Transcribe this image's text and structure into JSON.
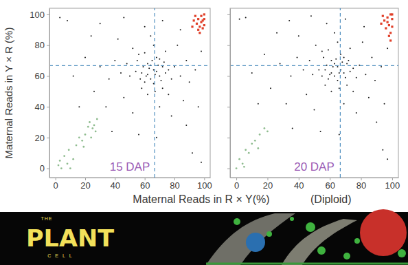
{
  "chart_data": [
    {
      "type": "scatter",
      "title": "15 DAP",
      "xlabel": "Maternal Reads in R × Y(%)",
      "ylabel": "Maternal Reads in Y × R (%)",
      "xlim": [
        -4,
        104
      ],
      "ylim": [
        -6,
        104
      ],
      "xticks": [
        0,
        20,
        40,
        60,
        80,
        100
      ],
      "yticks": [
        0,
        20,
        40,
        60,
        80,
        100
      ],
      "vline": 66.7,
      "hline": 66.7,
      "series": [
        {
          "color": "#1a1a1a",
          "marker": "circle",
          "x": [
            66,
            62,
            70,
            58,
            72,
            64,
            68,
            60,
            74,
            55,
            67,
            63,
            69,
            61,
            71,
            65,
            59,
            73,
            57,
            66,
            76,
            54,
            68,
            62,
            70,
            64,
            50,
            78,
            60,
            67,
            72,
            56,
            80,
            48,
            66,
            62,
            84,
            44,
            74,
            58,
            52,
            76,
            40,
            88,
            64,
            70,
            36,
            90,
            46,
            82,
            30,
            94,
            60,
            78,
            26,
            86,
            42,
            20,
            96,
            72,
            52,
            34,
            84,
            12,
            98,
            56,
            88,
            24,
            8,
            92,
            16,
            46,
            3,
            98,
            68,
            38,
            30
          ],
          "values": [
            64,
            68,
            60,
            62,
            66,
            58,
            72,
            56,
            62,
            70,
            61,
            65,
            67,
            60,
            57,
            70,
            66,
            69,
            58,
            55,
            64,
            63,
            63,
            61,
            71,
            67,
            60,
            58,
            75,
            50,
            52,
            74,
            66,
            68,
            80,
            48,
            60,
            62,
            76,
            52,
            78,
            48,
            70,
            70,
            86,
            40,
            58,
            56,
            46,
            80,
            66,
            64,
            92,
            34,
            50,
            44,
            84,
            72,
            40,
            96,
            36,
            40,
            90,
            60,
            76,
            22,
            28,
            86,
            96,
            10,
            40,
            98,
            98,
            4,
            20,
            24,
            94
          ]
        },
        {
          "color": "#8fbc8f",
          "marker": "circle",
          "x": [
            2,
            4,
            6,
            9,
            12,
            14,
            16,
            18,
            20,
            22,
            23,
            25,
            26,
            27,
            28,
            8,
            3,
            19,
            24,
            10
          ],
          "values": [
            2,
            0,
            8,
            12,
            6,
            15,
            20,
            18,
            22,
            27,
            30,
            26,
            28,
            24,
            32,
            3,
            5,
            14,
            20,
            0
          ]
        },
        {
          "color": "#e0402a",
          "marker": "square",
          "x": [
            95,
            96,
            97,
            98,
            99,
            100,
            93,
            97,
            99,
            100,
            94,
            98,
            96,
            100,
            92
          ],
          "values": [
            94,
            97,
            92,
            99,
            96,
            100,
            96,
            88,
            91,
            97,
            99,
            95,
            90,
            93,
            92
          ]
        }
      ]
    },
    {
      "type": "scatter",
      "title": "20 DAP",
      "xlabel": "(Diploid)",
      "xlim": [
        -4,
        104
      ],
      "ylim": [
        -6,
        104
      ],
      "xticks": [
        0,
        20,
        40,
        60,
        80,
        100
      ],
      "yticks": [
        0,
        20,
        40,
        60,
        80,
        100
      ],
      "tick_labels": "x",
      "vline": 66.7,
      "hline": 66.7,
      "series": [
        {
          "color": "#1a1a1a",
          "marker": "circle",
          "x": [
            65,
            61,
            69,
            57,
            71,
            63,
            67,
            59,
            73,
            56,
            66,
            62,
            68,
            60,
            70,
            64,
            58,
            72,
            55,
            65,
            75,
            53,
            67,
            61,
            69,
            63,
            49,
            77,
            59,
            66,
            71,
            55,
            79,
            47,
            65,
            61,
            83,
            43,
            73,
            57,
            51,
            75,
            39,
            87,
            63,
            69,
            35,
            89,
            45,
            81,
            28,
            93,
            58,
            77,
            22,
            85,
            40,
            18,
            95,
            70,
            50,
            32,
            82,
            10,
            97,
            54,
            90,
            26,
            6,
            94,
            14,
            48,
            2,
            97,
            66,
            36,
            34
          ],
          "values": [
            66,
            70,
            62,
            64,
            68,
            60,
            74,
            58,
            63,
            72,
            62,
            66,
            69,
            61,
            59,
            71,
            67,
            70,
            60,
            57,
            65,
            64,
            64,
            62,
            72,
            68,
            61,
            59,
            77,
            52,
            54,
            76,
            67,
            70,
            82,
            50,
            61,
            64,
            78,
            54,
            80,
            50,
            72,
            72,
            88,
            42,
            60,
            57,
            48,
            82,
            68,
            66,
            94,
            36,
            52,
            46,
            86,
            74,
            42,
            97,
            38,
            42,
            92,
            62,
            78,
            24,
            30,
            88,
            98,
            12,
            42,
            99,
            97,
            6,
            22,
            26,
            96
          ]
        },
        {
          "color": "#8fbc8f",
          "marker": "circle",
          "x": [
            0,
            2,
            4,
            6,
            8,
            10,
            12,
            15,
            18,
            20,
            5,
            14
          ],
          "values": [
            0,
            6,
            3,
            12,
            10,
            16,
            18,
            22,
            26,
            24,
            1,
            13
          ]
        },
        {
          "color": "#e0402a",
          "marker": "square",
          "x": [
            95,
            97,
            99,
            100,
            98,
            96,
            99,
            100,
            94,
            97,
            100,
            93,
            98,
            99
          ],
          "values": [
            96,
            98,
            100,
            97,
            93,
            91,
            88,
            92,
            99,
            95,
            100,
            94,
            86,
            83
          ]
        }
      ]
    }
  ],
  "banner": {
    "lines": [
      "THE",
      "PLANT",
      "CELL"
    ]
  }
}
